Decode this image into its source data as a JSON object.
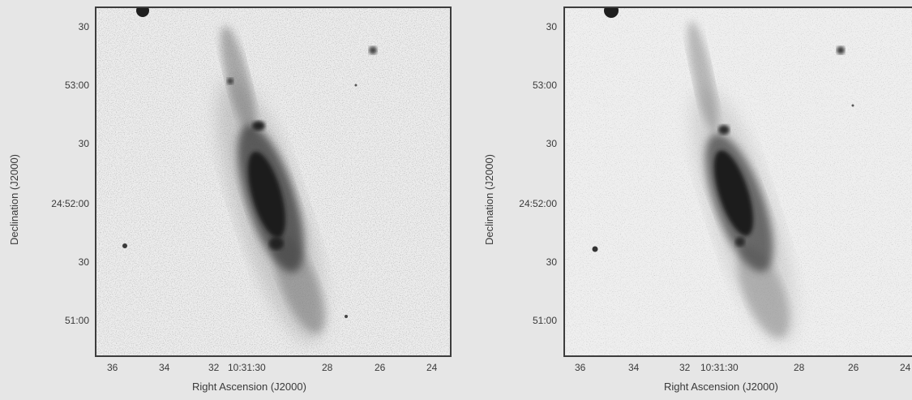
{
  "panels": [
    {
      "id": "left",
      "ylabel": "Declination (J2000)",
      "xlabel": "Right Ascension (J2000)",
      "yticks": [
        "30",
        "53:00",
        "30",
        "24:52:00",
        "30",
        "51:00"
      ],
      "xticks": [
        "36",
        "34",
        "32",
        "10:31:30",
        "28",
        "26",
        "24"
      ]
    },
    {
      "id": "right",
      "ylabel": "Declination (J2000)",
      "xlabel": "Right Ascension (J2000)",
      "yticks": [
        "30",
        "53:00",
        "30",
        "24:52:00",
        "30",
        "51:00"
      ],
      "xticks": [
        "36",
        "34",
        "32",
        "10:31:30",
        "28",
        "26",
        "24"
      ]
    }
  ],
  "colors": {
    "background": "#e6e6e6",
    "frame": "#3d3d3d",
    "galaxy_core": "#1a1a1a"
  }
}
